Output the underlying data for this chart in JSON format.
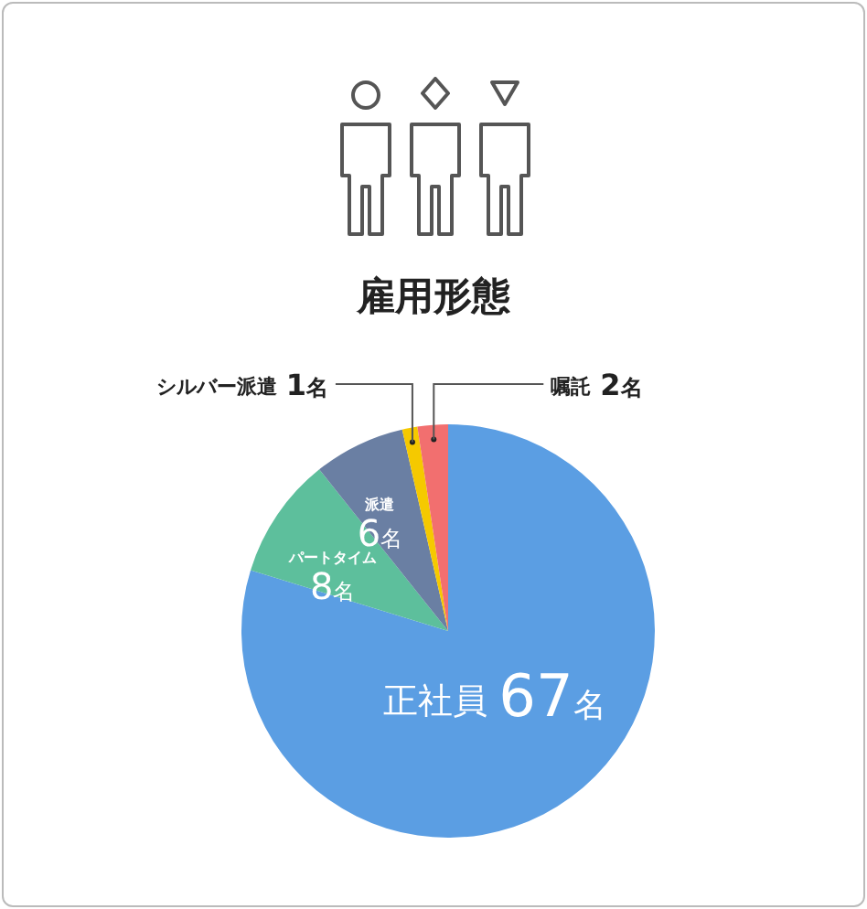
{
  "chart_data": {
    "type": "pie",
    "title": "雇用形態",
    "categories": [
      "正社員",
      "パートタイム",
      "派遣",
      "シルバー派遣",
      "嘱託"
    ],
    "values": [
      67,
      8,
      6,
      1,
      2
    ],
    "value_labels": [
      "67名",
      "8名",
      "6名",
      "1名",
      "2名"
    ],
    "colors": [
      "#5b9ee3",
      "#5dbf9c",
      "#6a7fa3",
      "#f5c900",
      "#f26f6f"
    ],
    "legend": false
  }
}
